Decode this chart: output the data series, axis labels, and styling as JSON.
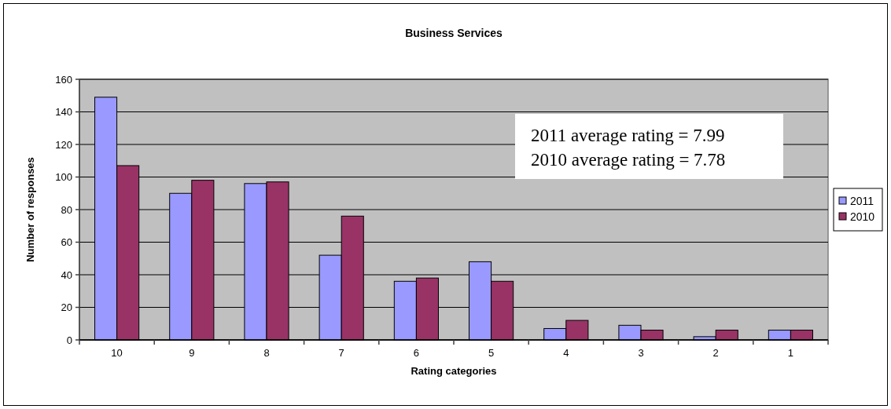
{
  "chart_data": {
    "type": "bar",
    "title": "Business Services",
    "xlabel": "Rating categories",
    "ylabel": "Number of responses",
    "categories": [
      "10",
      "9",
      "8",
      "7",
      "6",
      "5",
      "4",
      "3",
      "2",
      "1"
    ],
    "series": [
      {
        "name": "2011",
        "color": "#9999ff",
        "values": [
          149,
          90,
          96,
          52,
          36,
          48,
          7,
          9,
          2,
          6
        ]
      },
      {
        "name": "2010",
        "color": "#993366",
        "values": [
          107,
          98,
          97,
          76,
          38,
          36,
          12,
          6,
          6,
          6
        ]
      }
    ],
    "ylim": [
      0,
      160
    ],
    "yticks": [
      0,
      20,
      40,
      60,
      80,
      100,
      120,
      140,
      160
    ],
    "grid": "y",
    "legend": "right",
    "annotations": [
      "2011 average rating = 7.99",
      "2010 average rating = 7.78"
    ]
  }
}
